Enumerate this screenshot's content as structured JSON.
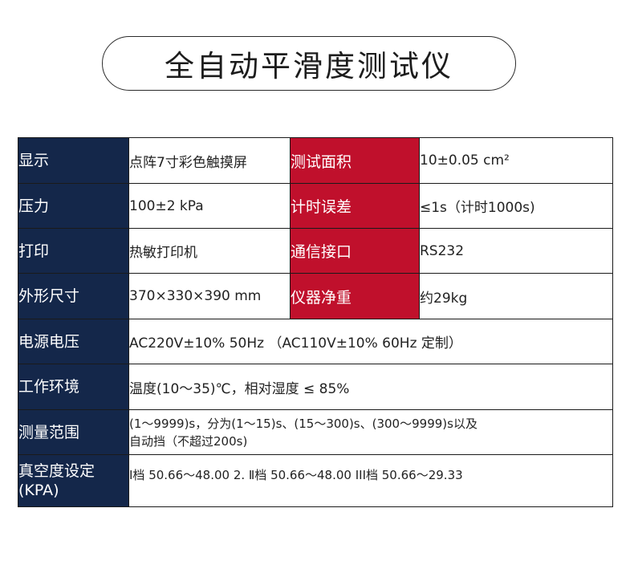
{
  "title": "全自动平滑度测试仪",
  "rows": [
    {
      "label": "显示",
      "value": "点阵7寸彩色触摸屏",
      "label2": "测试面积",
      "value2": "10±0.05 cm²"
    },
    {
      "label": "压力",
      "value": "100±2 kPa",
      "label2": "计时误差",
      "value2": "≤1s（计时1000s)"
    },
    {
      "label": "打印",
      "value": "热敏打印机",
      "label2": "通信接口",
      "value2": "RS232"
    },
    {
      "label": "外形尺寸",
      "value": "370×330×390 mm",
      "label2": "仪器净重",
      "value2": "约29kg"
    },
    {
      "label": "电源电压",
      "value": "AC220V±10% 50Hz （AC110V±10% 60Hz 定制）"
    },
    {
      "label": "工作环境",
      "value": "温度(10～35)℃，相对湿度 ≤ 85%"
    },
    {
      "label": "测量范围",
      "value_line1": "(1～9999)s，分为(1～15)s、(15～300)s、(300～9999)s以及",
      "value_line2": "自动挡（不超过200s)"
    },
    {
      "label_line1": "真空度设定",
      "label_line2": "(KPA)",
      "value": "Ⅰ档 50.66～48.00 2.   Ⅱ档 50.66～48.00   III档 50.66～29.33"
    }
  ],
  "colors": {
    "label_bg": "#14274a",
    "label2_bg": "#c0102c"
  }
}
